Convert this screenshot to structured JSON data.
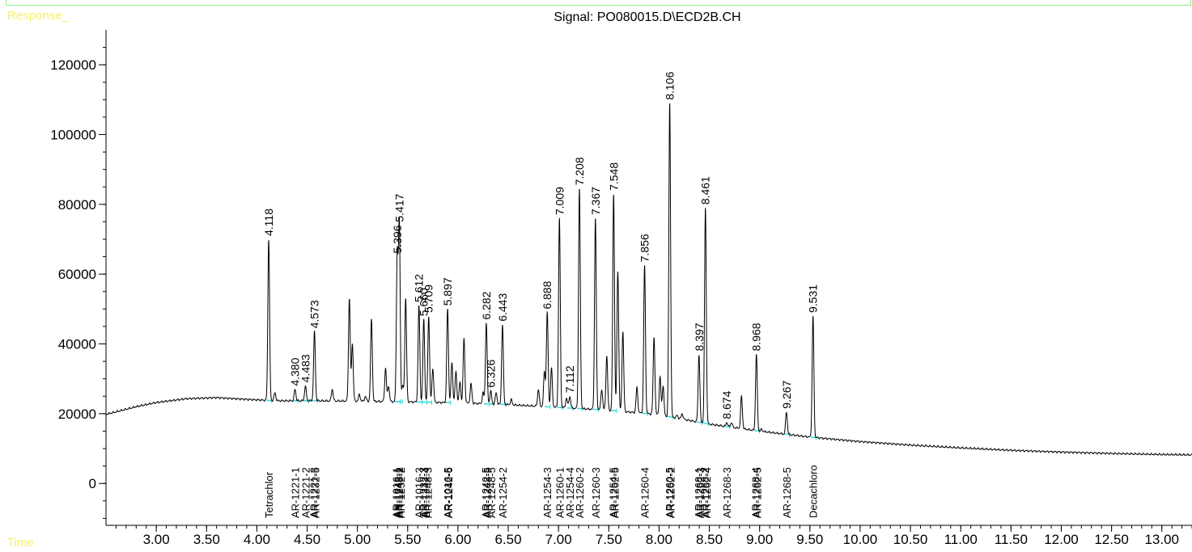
{
  "corner_labels": {
    "response": "Response_",
    "time": "Time"
  },
  "chart_data": {
    "type": "line",
    "title": "Signal: PO080015.D\\ECD2B.CH",
    "xlabel": "Time",
    "ylabel": "Response_",
    "xlim": [
      2.5,
      13.3
    ],
    "ylim": [
      -12000,
      130000
    ],
    "x_ticks": [
      "3.00",
      "3.50",
      "4.00",
      "4.50",
      "5.00",
      "5.50",
      "6.00",
      "6.50",
      "7.00",
      "7.50",
      "8.00",
      "8.50",
      "9.00",
      "9.50",
      "10.00",
      "10.50",
      "11.00",
      "11.50",
      "12.00",
      "12.50",
      "13.00"
    ],
    "y_ticks": [
      "0",
      "20000",
      "40000",
      "60000",
      "80000",
      "100000",
      "120000"
    ],
    "grid": false,
    "baseline": [
      [
        2.5,
        19800
      ],
      [
        2.8,
        22000
      ],
      [
        3.0,
        23200
      ],
      [
        3.3,
        24300
      ],
      [
        3.6,
        24600
      ],
      [
        3.9,
        24100
      ],
      [
        4.2,
        23700
      ],
      [
        4.6,
        23700
      ],
      [
        5.0,
        23600
      ],
      [
        5.5,
        23400
      ],
      [
        6.0,
        23100
      ],
      [
        6.5,
        22600
      ],
      [
        7.0,
        21800
      ],
      [
        7.5,
        21000
      ],
      [
        8.0,
        19700
      ],
      [
        8.5,
        17000
      ],
      [
        9.0,
        15000
      ],
      [
        9.5,
        13300
      ],
      [
        10.0,
        12000
      ],
      [
        10.5,
        11000
      ],
      [
        11.0,
        10200
      ],
      [
        11.5,
        9500
      ],
      [
        12.0,
        9000
      ],
      [
        12.5,
        8600
      ],
      [
        13.0,
        8300
      ],
      [
        13.3,
        8200
      ]
    ],
    "peaks": [
      {
        "t": 4.118,
        "h": 70000,
        "label": "4.118"
      },
      {
        "t": 4.18,
        "h": 26000
      },
      {
        "t": 4.38,
        "h": 27000,
        "label": "4.380"
      },
      {
        "t": 4.483,
        "h": 28000,
        "label": "4.483"
      },
      {
        "t": 4.573,
        "h": 43500,
        "label": "4.573"
      },
      {
        "t": 4.75,
        "h": 27000
      },
      {
        "t": 4.92,
        "h": 53000
      },
      {
        "t": 4.95,
        "h": 40000
      },
      {
        "t": 5.02,
        "h": 25500
      },
      {
        "t": 5.08,
        "h": 25000
      },
      {
        "t": 5.14,
        "h": 47000
      },
      {
        "t": 5.28,
        "h": 33000
      },
      {
        "t": 5.31,
        "h": 28000
      },
      {
        "t": 5.396,
        "h": 65000,
        "label": "5.396"
      },
      {
        "t": 5.417,
        "h": 74000,
        "label": "5.417"
      },
      {
        "t": 5.45,
        "h": 28000
      },
      {
        "t": 5.48,
        "h": 53000
      },
      {
        "t": 5.612,
        "h": 51000,
        "label": "5.612"
      },
      {
        "t": 5.66,
        "h": 47000,
        "label": "5.660"
      },
      {
        "t": 5.709,
        "h": 48000,
        "label": "5.709"
      },
      {
        "t": 5.75,
        "h": 33000
      },
      {
        "t": 5.897,
        "h": 50000,
        "label": "5.897"
      },
      {
        "t": 5.94,
        "h": 34500
      },
      {
        "t": 5.98,
        "h": 32000
      },
      {
        "t": 6.02,
        "h": 29000
      },
      {
        "t": 6.06,
        "h": 41500
      },
      {
        "t": 6.13,
        "h": 28500
      },
      {
        "t": 6.25,
        "h": 26000
      },
      {
        "t": 6.282,
        "h": 46000,
        "label": "6.282"
      },
      {
        "t": 6.326,
        "h": 26500,
        "label": "6.326"
      },
      {
        "t": 6.38,
        "h": 26000
      },
      {
        "t": 6.443,
        "h": 45500,
        "label": "6.443"
      },
      {
        "t": 6.53,
        "h": 24000
      },
      {
        "t": 6.8,
        "h": 27000
      },
      {
        "t": 6.86,
        "h": 32000
      },
      {
        "t": 6.888,
        "h": 49000,
        "label": "6.888"
      },
      {
        "t": 6.93,
        "h": 33000
      },
      {
        "t": 7.009,
        "h": 76000,
        "label": "7.009"
      },
      {
        "t": 7.08,
        "h": 24500
      },
      {
        "t": 7.112,
        "h": 25000,
        "label": "7.112"
      },
      {
        "t": 7.208,
        "h": 84500,
        "label": "7.208"
      },
      {
        "t": 7.367,
        "h": 76000,
        "label": "7.367"
      },
      {
        "t": 7.43,
        "h": 27000
      },
      {
        "t": 7.48,
        "h": 36500
      },
      {
        "t": 7.548,
        "h": 83000,
        "label": "7.548"
      },
      {
        "t": 7.59,
        "h": 61000
      },
      {
        "t": 7.64,
        "h": 43500
      },
      {
        "t": 7.78,
        "h": 27500
      },
      {
        "t": 7.856,
        "h": 62500,
        "label": "7.856"
      },
      {
        "t": 7.95,
        "h": 42000
      },
      {
        "t": 8.01,
        "h": 30500
      },
      {
        "t": 8.04,
        "h": 28000
      },
      {
        "t": 8.106,
        "h": 109000,
        "label": "8.106"
      },
      {
        "t": 8.18,
        "h": 19500
      },
      {
        "t": 8.23,
        "h": 20000
      },
      {
        "t": 8.397,
        "h": 37000,
        "label": "8.397"
      },
      {
        "t": 8.461,
        "h": 79000,
        "label": "8.461"
      },
      {
        "t": 8.674,
        "h": 17500,
        "label": "8.674"
      },
      {
        "t": 8.72,
        "h": 17500
      },
      {
        "t": 8.82,
        "h": 25000
      },
      {
        "t": 8.968,
        "h": 37000,
        "label": "8.968"
      },
      {
        "t": 9.02,
        "h": 15500
      },
      {
        "t": 9.267,
        "h": 20500,
        "label": "9.267"
      },
      {
        "t": 9.531,
        "h": 48000,
        "label": "9.531"
      }
    ],
    "compound_labels": [
      {
        "t": 4.118,
        "text": "Tetrachlor"
      },
      {
        "t": 4.38,
        "text": "AR-1221-1"
      },
      {
        "t": 4.483,
        "text": "AR-1221-2"
      },
      {
        "t": 4.565,
        "text": "AR-1221-3"
      },
      {
        "t": 4.58,
        "text": "AR-1232-5"
      },
      {
        "t": 5.385,
        "text": "AR-1016-1"
      },
      {
        "t": 5.4,
        "text": "AR-1242-1"
      },
      {
        "t": 5.415,
        "text": "AR-1248-2"
      },
      {
        "t": 5.43,
        "text": "AR-1232-2"
      },
      {
        "t": 5.61,
        "text": "AR-1016-3"
      },
      {
        "t": 5.655,
        "text": "AR-1232-3"
      },
      {
        "t": 5.675,
        "text": "AR-1242-4"
      },
      {
        "t": 5.7,
        "text": "AR-1248-3"
      },
      {
        "t": 5.895,
        "text": "AR-1016-5"
      },
      {
        "t": 5.905,
        "text": "AR-1242-6"
      },
      {
        "t": 6.275,
        "text": "AR-1242-5"
      },
      {
        "t": 6.29,
        "text": "AR-1248-5"
      },
      {
        "t": 6.33,
        "text": "AR-1248-5"
      },
      {
        "t": 6.443,
        "text": "AR-1254-2"
      },
      {
        "t": 6.888,
        "text": "AR-1254-3"
      },
      {
        "t": 7.009,
        "text": "AR-1260-1"
      },
      {
        "t": 7.112,
        "text": "AR-1254-4"
      },
      {
        "t": 7.208,
        "text": "AR-1260-2"
      },
      {
        "t": 7.367,
        "text": "AR-1260-3"
      },
      {
        "t": 7.54,
        "text": "AR-1254-5"
      },
      {
        "t": 7.556,
        "text": "AR-1262-5"
      },
      {
        "t": 7.856,
        "text": "AR-1260-4"
      },
      {
        "t": 8.1,
        "text": "AR-1260-5"
      },
      {
        "t": 8.114,
        "text": "AR-1262-2"
      },
      {
        "t": 8.39,
        "text": "AR-1268-1"
      },
      {
        "t": 8.405,
        "text": "AR-1262-3"
      },
      {
        "t": 8.455,
        "text": "AR-1268-2"
      },
      {
        "t": 8.47,
        "text": "AR-1262-4"
      },
      {
        "t": 8.674,
        "text": "AR-1268-3"
      },
      {
        "t": 8.96,
        "text": "AR-1268-4"
      },
      {
        "t": 8.976,
        "text": "AR-1262-5"
      },
      {
        "t": 9.267,
        "text": "AR-1268-5"
      },
      {
        "t": 9.531,
        "text": "Decachloro"
      }
    ],
    "colors": {
      "trace": "#000000",
      "integration_baseline": "#3ad8d8",
      "frame": "#8cf08c",
      "corner_labels": "#f2f26a"
    }
  }
}
